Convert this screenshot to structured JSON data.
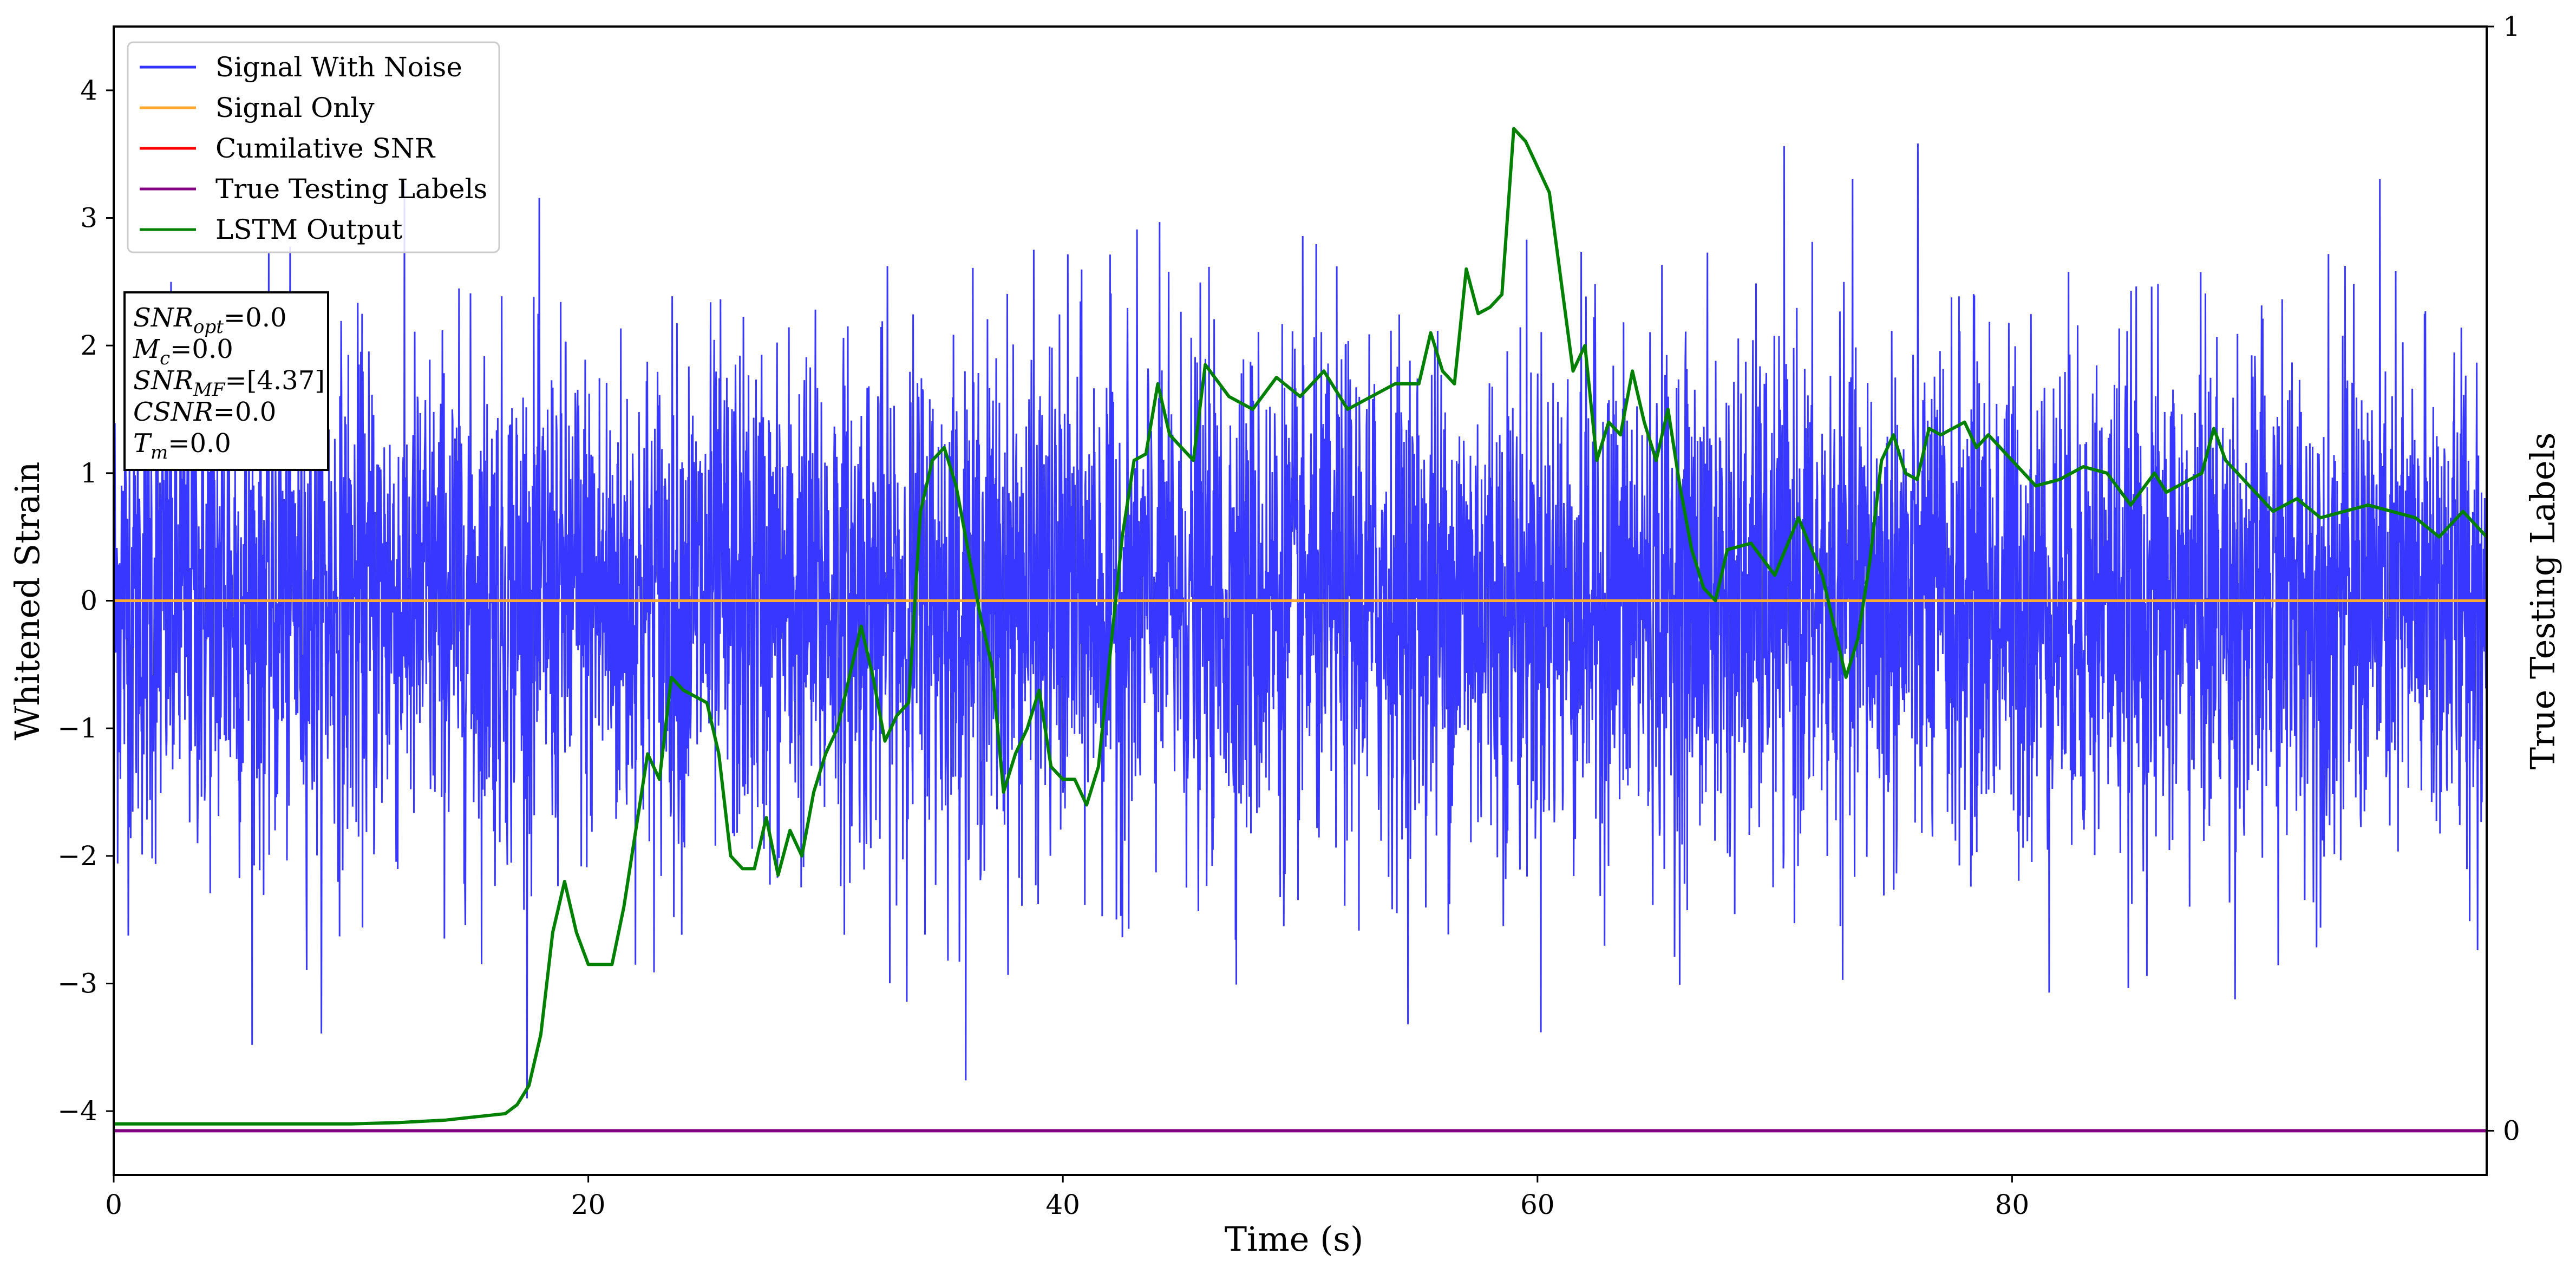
{
  "chart_data": {
    "type": "line",
    "xlabel": "Time (s)",
    "ylabel": "Whitened Strain",
    "y2label": "True Testing Labels",
    "xlim": [
      0,
      100
    ],
    "ylim": [
      -4.5,
      4.5
    ],
    "y2lim": [
      -0.04,
      1.0
    ],
    "xticks": [
      0,
      20,
      40,
      60,
      80
    ],
    "yticks": [
      -4,
      -3,
      -2,
      -1,
      0,
      1,
      2,
      3,
      4
    ],
    "y2ticks": [
      0,
      1
    ],
    "grid": false,
    "legend_position": "top-left",
    "series": [
      {
        "name": "Signal With Noise",
        "color": "#3333ff",
        "noise_std": 1.0,
        "noise_range": [
          -3.9,
          4.1
        ]
      },
      {
        "name": "Signal Only",
        "color": "#ffaa33",
        "values": [
          [
            0,
            0
          ],
          [
            100,
            0
          ]
        ]
      },
      {
        "name": "Cumilative SNR",
        "color": "#ff0000",
        "values": [
          [
            0,
            0
          ],
          [
            100,
            0
          ]
        ]
      },
      {
        "name": "True Testing Labels",
        "color": "#800080",
        "axis": "right",
        "values": [
          [
            0,
            0
          ],
          [
            100,
            0
          ]
        ]
      },
      {
        "name": "LSTM Output",
        "color": "#008000",
        "values": [
          [
            0,
            -4.1
          ],
          [
            5,
            -4.1
          ],
          [
            10,
            -4.1
          ],
          [
            12,
            -4.09
          ],
          [
            13,
            -4.08
          ],
          [
            14,
            -4.07
          ],
          [
            15,
            -4.05
          ],
          [
            16,
            -4.03
          ],
          [
            16.5,
            -4.02
          ],
          [
            17,
            -3.95
          ],
          [
            17.5,
            -3.8
          ],
          [
            18,
            -3.4
          ],
          [
            18.5,
            -2.6
          ],
          [
            19,
            -2.2
          ],
          [
            19.5,
            -2.6
          ],
          [
            20,
            -2.85
          ],
          [
            21,
            -2.85
          ],
          [
            21.5,
            -2.4
          ],
          [
            22,
            -1.8
          ],
          [
            22.5,
            -1.2
          ],
          [
            23,
            -1.4
          ],
          [
            23.5,
            -0.6
          ],
          [
            24,
            -0.7
          ],
          [
            25,
            -0.8
          ],
          [
            25.5,
            -1.2
          ],
          [
            26,
            -2.0
          ],
          [
            26.5,
            -2.1
          ],
          [
            27,
            -2.1
          ],
          [
            27.5,
            -1.7
          ],
          [
            28,
            -2.15
          ],
          [
            28.5,
            -1.8
          ],
          [
            29,
            -2.0
          ],
          [
            29.5,
            -1.5
          ],
          [
            30,
            -1.2
          ],
          [
            30.5,
            -1.0
          ],
          [
            31,
            -0.6
          ],
          [
            31.5,
            -0.2
          ],
          [
            32,
            -0.6
          ],
          [
            32.5,
            -1.1
          ],
          [
            33,
            -0.9
          ],
          [
            33.5,
            -0.8
          ],
          [
            34,
            0.7
          ],
          [
            34.5,
            1.1
          ],
          [
            35,
            1.2
          ],
          [
            35.5,
            0.9
          ],
          [
            36,
            0.4
          ],
          [
            36.5,
            -0.1
          ],
          [
            37,
            -0.5
          ],
          [
            37.5,
            -1.5
          ],
          [
            38,
            -1.2
          ],
          [
            38.5,
            -1.0
          ],
          [
            39,
            -0.7
          ],
          [
            39.5,
            -1.3
          ],
          [
            40,
            -1.4
          ],
          [
            40.5,
            -1.4
          ],
          [
            41,
            -1.6
          ],
          [
            41.5,
            -1.3
          ],
          [
            42,
            -0.4
          ],
          [
            42.5,
            0.5
          ],
          [
            43,
            1.1
          ],
          [
            43.5,
            1.15
          ],
          [
            44,
            1.7
          ],
          [
            44.5,
            1.3
          ],
          [
            45,
            1.2
          ],
          [
            45.5,
            1.1
          ],
          [
            46,
            1.85
          ],
          [
            47,
            1.6
          ],
          [
            48,
            1.5
          ],
          [
            49,
            1.75
          ],
          [
            50,
            1.6
          ],
          [
            51,
            1.8
          ],
          [
            52,
            1.5
          ],
          [
            53,
            1.6
          ],
          [
            54,
            1.7
          ],
          [
            55,
            1.7
          ],
          [
            55.5,
            2.1
          ],
          [
            56,
            1.8
          ],
          [
            56.5,
            1.7
          ],
          [
            57,
            2.6
          ],
          [
            57.5,
            2.25
          ],
          [
            58,
            2.3
          ],
          [
            58.5,
            2.4
          ],
          [
            59,
            3.7
          ],
          [
            59.5,
            3.6
          ],
          [
            60,
            3.4
          ],
          [
            60.5,
            3.2
          ],
          [
            61,
            2.5
          ],
          [
            61.5,
            1.8
          ],
          [
            62,
            2.0
          ],
          [
            62.5,
            1.1
          ],
          [
            63,
            1.4
          ],
          [
            63.5,
            1.3
          ],
          [
            64,
            1.8
          ],
          [
            64.5,
            1.4
          ],
          [
            65,
            1.1
          ],
          [
            65.5,
            1.5
          ],
          [
            66,
            0.9
          ],
          [
            66.5,
            0.4
          ],
          [
            67,
            0.1
          ],
          [
            67.5,
            0.0
          ],
          [
            68,
            0.4
          ],
          [
            69,
            0.45
          ],
          [
            70,
            0.2
          ],
          [
            71,
            0.65
          ],
          [
            72,
            0.2
          ],
          [
            72.5,
            -0.2
          ],
          [
            73,
            -0.6
          ],
          [
            73.5,
            -0.3
          ],
          [
            74,
            0.3
          ],
          [
            74.5,
            1.1
          ],
          [
            75,
            1.3
          ],
          [
            75.5,
            1.0
          ],
          [
            76,
            0.95
          ],
          [
            76.5,
            1.35
          ],
          [
            77,
            1.3
          ],
          [
            78,
            1.4
          ],
          [
            78.5,
            1.2
          ],
          [
            79,
            1.3
          ],
          [
            80,
            1.1
          ],
          [
            81,
            0.9
          ],
          [
            82,
            0.95
          ],
          [
            83,
            1.05
          ],
          [
            84,
            1.0
          ],
          [
            85,
            0.75
          ],
          [
            86,
            1.0
          ],
          [
            86.5,
            0.85
          ],
          [
            87,
            0.9
          ],
          [
            88,
            1.0
          ],
          [
            88.5,
            1.35
          ],
          [
            89,
            1.1
          ],
          [
            90,
            0.9
          ],
          [
            91,
            0.7
          ],
          [
            92,
            0.8
          ],
          [
            93,
            0.65
          ],
          [
            94,
            0.7
          ],
          [
            95,
            0.75
          ],
          [
            96,
            0.7
          ],
          [
            97,
            0.65
          ],
          [
            98,
            0.5
          ],
          [
            99,
            0.7
          ],
          [
            100,
            0.5
          ]
        ]
      }
    ],
    "annotation": {
      "lines": [
        {
          "sym": "SNR",
          "sub": "opt",
          "rest": "=0.0"
        },
        {
          "sym": "M",
          "sub": "c",
          "rest": "=0.0"
        },
        {
          "sym": "SNR",
          "sub": "MF",
          "rest": "=[4.37]"
        },
        {
          "sym": "CSNR",
          "sub": "",
          "rest": "=0.0"
        },
        {
          "sym": "T",
          "sub": "m",
          "rest": "=0.0"
        }
      ]
    }
  }
}
